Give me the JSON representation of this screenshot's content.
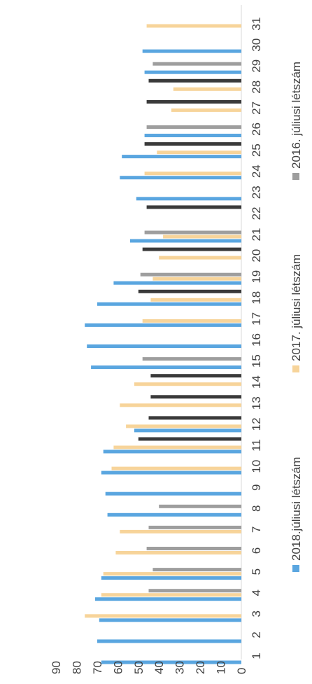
{
  "chart_data": {
    "type": "bar",
    "orientation": "horizontal",
    "categories": [
      "1",
      "2",
      "3",
      "4",
      "5",
      "6",
      "7",
      "8",
      "9",
      "10",
      "11",
      "12",
      "13",
      "14",
      "15",
      "16",
      "17",
      "18",
      "19",
      "20",
      "21",
      "22",
      "23",
      "24",
      "25",
      "26",
      "27",
      "28",
      "29",
      "30",
      "31"
    ],
    "series": [
      {
        "name": "2018.júliusi létszám",
        "color": "#5aa6e0",
        "values": [
          68,
          70,
          69,
          71,
          68,
          null,
          null,
          65,
          66,
          68,
          67,
          52,
          null,
          null,
          73,
          75,
          76,
          70,
          62,
          null,
          54,
          null,
          51,
          59,
          58,
          47,
          null,
          null,
          47,
          48,
          null
        ]
      },
      {
        "name": "2017. júliusi létszám",
        "color": "#f7d49a",
        "values": [
          null,
          null,
          76,
          68,
          67,
          61,
          59,
          null,
          null,
          63,
          62,
          56,
          59,
          52,
          null,
          null,
          48,
          44,
          43,
          40,
          38,
          null,
          null,
          47,
          41,
          null,
          34,
          33,
          null,
          null,
          46
        ]
      },
      {
        "name": "2016. júliusi létszám",
        "color": "#9e9e9e",
        "values": [
          null,
          null,
          null,
          45,
          43,
          46,
          45,
          40,
          null,
          null,
          null,
          null,
          null,
          null,
          48,
          null,
          null,
          null,
          49,
          null,
          47,
          null,
          null,
          null,
          null,
          46,
          null,
          null,
          43,
          null,
          null
        ]
      },
      {
        "name": "",
        "color": "#3a3a3a",
        "values": [
          null,
          null,
          null,
          null,
          null,
          null,
          null,
          null,
          null,
          null,
          50,
          45,
          44,
          44,
          null,
          null,
          null,
          50,
          null,
          48,
          null,
          46,
          null,
          null,
          47,
          null,
          46,
          45,
          null,
          null,
          null
        ]
      }
    ],
    "ylim": [
      0,
      90
    ],
    "yticks": [
      "0",
      "10",
      "20",
      "30",
      "40",
      "50",
      "60",
      "70",
      "80",
      "90"
    ],
    "grid": false,
    "legend_position": "bottom",
    "legend": [
      "2018.júliusi létszám",
      "2017. júliusi létszám",
      "2016. júliusi létszám"
    ]
  }
}
